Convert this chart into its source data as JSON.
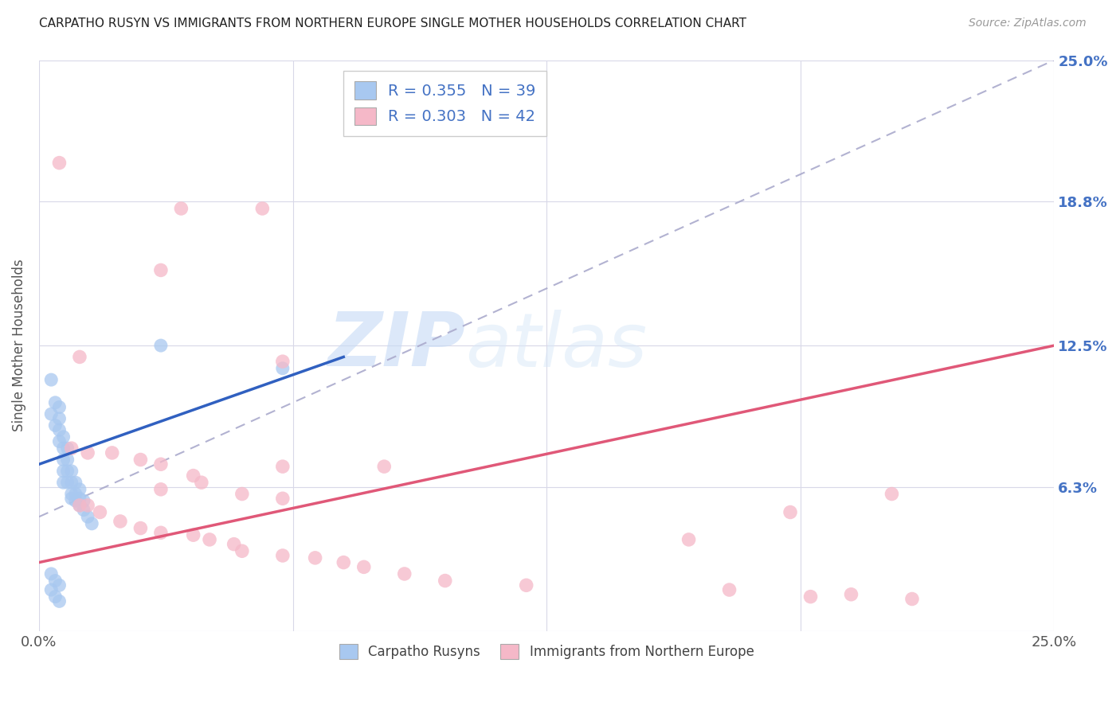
{
  "title": "CARPATHO RUSYN VS IMMIGRANTS FROM NORTHERN EUROPE SINGLE MOTHER HOUSEHOLDS CORRELATION CHART",
  "source": "Source: ZipAtlas.com",
  "ylabel": "Single Mother Households",
  "xlim": [
    0.0,
    0.25
  ],
  "ylim": [
    0.0,
    0.25
  ],
  "ytick_labels": [
    "",
    "6.3%",
    "12.5%",
    "18.8%",
    "25.0%"
  ],
  "ytick_values": [
    0.0,
    0.063,
    0.125,
    0.188,
    0.25
  ],
  "xtick_labels": [
    "0.0%",
    "",
    "",
    "",
    "25.0%"
  ],
  "xtick_values": [
    0.0,
    0.0625,
    0.125,
    0.1875,
    0.25
  ],
  "blue_R": 0.355,
  "blue_N": 39,
  "pink_R": 0.303,
  "pink_N": 42,
  "blue_label": "Carpatho Rusyns",
  "pink_label": "Immigrants from Northern Europe",
  "blue_color": "#a8c8f0",
  "pink_color": "#f5b8c8",
  "blue_line_color": "#3060c0",
  "pink_line_color": "#e05878",
  "blue_scatter": [
    [
      0.003,
      0.11
    ],
    [
      0.003,
      0.095
    ],
    [
      0.004,
      0.1
    ],
    [
      0.004,
      0.09
    ],
    [
      0.005,
      0.098
    ],
    [
      0.005,
      0.093
    ],
    [
      0.005,
      0.088
    ],
    [
      0.005,
      0.083
    ],
    [
      0.006,
      0.085
    ],
    [
      0.006,
      0.08
    ],
    [
      0.006,
      0.075
    ],
    [
      0.006,
      0.07
    ],
    [
      0.006,
      0.065
    ],
    [
      0.007,
      0.08
    ],
    [
      0.007,
      0.075
    ],
    [
      0.007,
      0.07
    ],
    [
      0.007,
      0.065
    ],
    [
      0.008,
      0.07
    ],
    [
      0.008,
      0.065
    ],
    [
      0.008,
      0.06
    ],
    [
      0.008,
      0.058
    ],
    [
      0.009,
      0.065
    ],
    [
      0.009,
      0.06
    ],
    [
      0.009,
      0.057
    ],
    [
      0.01,
      0.062
    ],
    [
      0.01,
      0.058
    ],
    [
      0.01,
      0.055
    ],
    [
      0.011,
      0.057
    ],
    [
      0.011,
      0.053
    ],
    [
      0.012,
      0.05
    ],
    [
      0.013,
      0.047
    ],
    [
      0.03,
      0.125
    ],
    [
      0.06,
      0.115
    ],
    [
      0.003,
      0.025
    ],
    [
      0.004,
      0.022
    ],
    [
      0.005,
      0.02
    ],
    [
      0.003,
      0.018
    ],
    [
      0.004,
      0.015
    ],
    [
      0.005,
      0.013
    ]
  ],
  "pink_scatter": [
    [
      0.005,
      0.205
    ],
    [
      0.035,
      0.185
    ],
    [
      0.055,
      0.185
    ],
    [
      0.03,
      0.158
    ],
    [
      0.01,
      0.12
    ],
    [
      0.06,
      0.118
    ],
    [
      0.008,
      0.08
    ],
    [
      0.012,
      0.078
    ],
    [
      0.018,
      0.078
    ],
    [
      0.025,
      0.075
    ],
    [
      0.03,
      0.073
    ],
    [
      0.06,
      0.072
    ],
    [
      0.085,
      0.072
    ],
    [
      0.038,
      0.068
    ],
    [
      0.04,
      0.065
    ],
    [
      0.03,
      0.062
    ],
    [
      0.05,
      0.06
    ],
    [
      0.06,
      0.058
    ],
    [
      0.01,
      0.055
    ],
    [
      0.012,
      0.055
    ],
    [
      0.015,
      0.052
    ],
    [
      0.02,
      0.048
    ],
    [
      0.025,
      0.045
    ],
    [
      0.03,
      0.043
    ],
    [
      0.038,
      0.042
    ],
    [
      0.042,
      0.04
    ],
    [
      0.048,
      0.038
    ],
    [
      0.05,
      0.035
    ],
    [
      0.06,
      0.033
    ],
    [
      0.068,
      0.032
    ],
    [
      0.075,
      0.03
    ],
    [
      0.08,
      0.028
    ],
    [
      0.09,
      0.025
    ],
    [
      0.1,
      0.022
    ],
    [
      0.12,
      0.02
    ],
    [
      0.16,
      0.04
    ],
    [
      0.17,
      0.018
    ],
    [
      0.185,
      0.052
    ],
    [
      0.19,
      0.015
    ],
    [
      0.2,
      0.016
    ],
    [
      0.21,
      0.06
    ],
    [
      0.215,
      0.014
    ]
  ],
  "watermark_zip": "ZIP",
  "watermark_atlas": "atlas",
  "background_color": "#ffffff",
  "grid_color": "#d8d8e8",
  "dash_color": "#aaaacc",
  "blue_line_x_start": 0.0,
  "blue_line_x_end": 0.075,
  "blue_line_y_start": 0.073,
  "blue_line_y_end": 0.12,
  "pink_line_x_start": 0.0,
  "pink_line_x_end": 0.25,
  "pink_line_y_start": 0.03,
  "pink_line_y_end": 0.125,
  "dash_line_x_start": 0.0,
  "dash_line_x_end": 0.25,
  "dash_line_y_start": 0.05,
  "dash_line_y_end": 0.25
}
